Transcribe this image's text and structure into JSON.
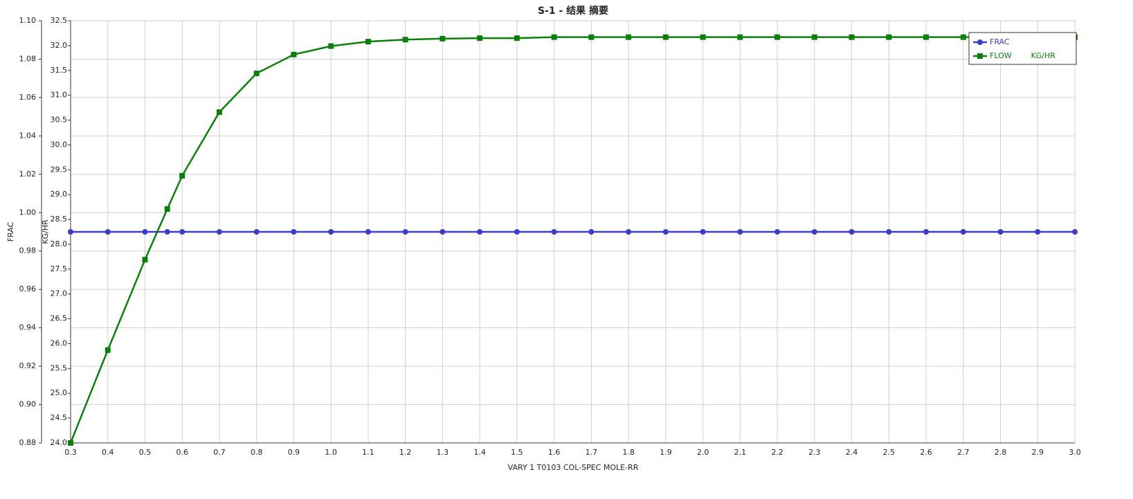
{
  "chart_data": {
    "type": "line",
    "title": "S-1 - 结果 摘要",
    "x_label": "VARY   1 T0103    COL-SPEC MOLE-RR",
    "y_label": "FRAC",
    "y2_label": "KG/HR",
    "x": [
      0.3,
      0.4,
      0.5,
      0.56,
      0.6,
      0.7,
      0.8,
      0.9,
      1.0,
      1.1,
      1.2,
      1.3,
      1.4,
      1.5,
      1.6,
      1.7,
      1.8,
      1.9,
      2.0,
      2.1,
      2.2,
      2.3,
      2.4,
      2.5,
      2.6,
      2.7,
      2.8,
      2.9,
      3.0
    ],
    "series": [
      {
        "name": "FRAC",
        "color": "#3c3cc8",
        "marker": "circle",
        "values": [
          0.99,
          0.99,
          0.99,
          0.99,
          0.99,
          0.99,
          0.99,
          0.99,
          0.99,
          0.99,
          0.99,
          0.99,
          0.99,
          0.99,
          0.99,
          0.99,
          0.99,
          0.99,
          0.99,
          0.99,
          0.99,
          0.99,
          0.99,
          0.99,
          0.99,
          0.99,
          0.99,
          0.99,
          0.99
        ]
      },
      {
        "name": "FLOW        KG/HR",
        "color": "#0a7f0a",
        "marker": "square",
        "axis": "y2",
        "values": [
          24.0,
          25.87,
          27.69,
          28.71,
          29.38,
          30.66,
          31.44,
          31.82,
          31.99,
          32.08,
          32.12,
          32.14,
          32.15,
          32.15,
          32.17,
          32.17,
          32.17,
          32.17,
          32.17,
          32.17,
          32.17,
          32.17,
          32.17,
          32.17,
          32.17,
          32.17,
          32.17,
          32.17,
          32.17
        ]
      }
    ],
    "xlim": [
      0.3,
      3.0
    ],
    "xticks": [
      0.3,
      0.4,
      0.5,
      0.6,
      0.7,
      0.8,
      0.9,
      {
        "value": 1.0,
        "label": "1.0"
      },
      1.1,
      1.2,
      1.3,
      1.4,
      1.5,
      1.6,
      1.7,
      1.8,
      1.9,
      {
        "value": 2.0,
        "label": "2.0"
      },
      2.1,
      2.2,
      2.3,
      2.4,
      2.5,
      2.6,
      2.7,
      2.8,
      2.9,
      {
        "value": 3.0,
        "label": "3.0"
      }
    ],
    "ylim": [
      0.88,
      1.1
    ],
    "yticks": [
      0.88,
      {
        "value": 0.9,
        "label": "0.90"
      },
      0.92,
      0.94,
      0.96,
      0.98,
      {
        "value": 1.0,
        "label": "1.00"
      },
      1.02,
      1.04,
      1.06,
      1.08,
      {
        "value": 1.1,
        "label": "1.10"
      }
    ],
    "y2lim": [
      24.0,
      32.5
    ],
    "y2ticks": [
      {
        "value": 24.0,
        "label": "24.0"
      },
      24.5,
      {
        "value": 25.0,
        "label": "25.0"
      },
      25.5,
      {
        "value": 26.0,
        "label": "26.0"
      },
      26.5,
      {
        "value": 27.0,
        "label": "27.0"
      },
      27.5,
      {
        "value": 28.0,
        "label": "28.0"
      },
      28.5,
      {
        "value": 29.0,
        "label": "29.0"
      },
      29.5,
      {
        "value": 30.0,
        "label": "30.0"
      },
      30.5,
      {
        "value": 31.0,
        "label": "31.0"
      },
      31.5,
      {
        "value": 32.0,
        "label": "32.0"
      },
      32.5
    ],
    "grid": true,
    "legend": "upper right"
  }
}
